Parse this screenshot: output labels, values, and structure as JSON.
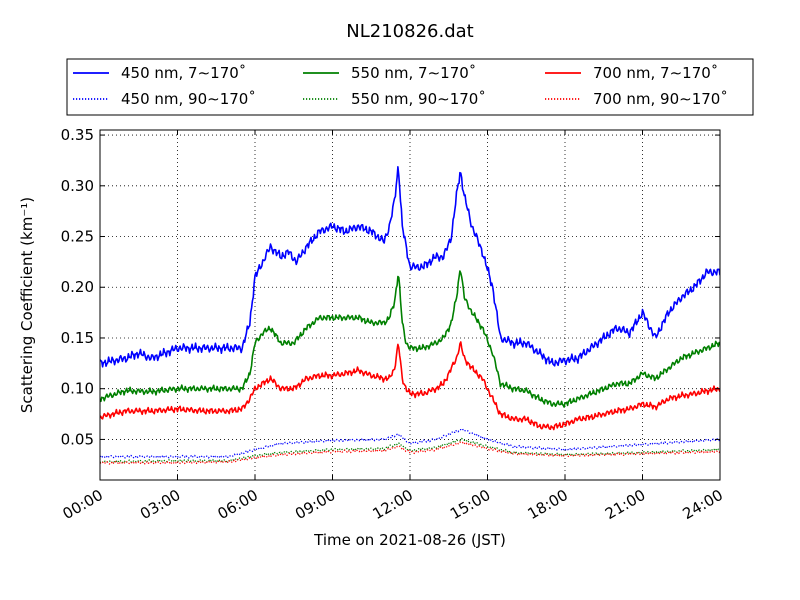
{
  "chart_data": {
    "type": "line",
    "title": "NL210826.dat",
    "xlabel": "Time on 2021-08-26 (JST)",
    "ylabel": "Scattering Coefficient (km⁻¹)",
    "xlim": [
      0,
      24
    ],
    "ylim": [
      0.01,
      0.355
    ],
    "x_ticks": [
      0,
      3,
      6,
      9,
      12,
      15,
      18,
      21,
      24
    ],
    "x_tick_labels": [
      "00:00",
      "03:00",
      "06:00",
      "09:00",
      "12:00",
      "15:00",
      "18:00",
      "21:00",
      "24:00"
    ],
    "y_ticks": [
      0.05,
      0.1,
      0.15,
      0.2,
      0.25,
      0.3,
      0.35
    ],
    "y_tick_labels": [
      "0.05",
      "0.10",
      "0.15",
      "0.20",
      "0.25",
      "0.30",
      "0.35"
    ],
    "grid": true,
    "legend_position": "top",
    "series": [
      {
        "name": "450 nm, 7∼170˚",
        "color": "#0000ff",
        "style": "solid",
        "x": [
          0,
          1,
          1.5,
          2,
          3,
          4,
          5,
          5.5,
          5.8,
          6.0,
          6.3,
          6.6,
          7,
          7.3,
          7.6,
          8,
          8.5,
          9,
          9.5,
          10,
          10.5,
          11,
          11.2,
          11.4,
          11.55,
          11.7,
          11.85,
          12,
          12.5,
          13,
          13.3,
          13.6,
          13.8,
          13.95,
          14.1,
          14.4,
          14.8,
          15.2,
          15.5,
          16,
          16.5,
          17,
          17.5,
          18,
          18.5,
          19,
          19.5,
          20,
          20.5,
          21,
          21.5,
          22,
          22.5,
          23,
          23.5,
          24
        ],
        "y": [
          0.125,
          0.13,
          0.135,
          0.13,
          0.14,
          0.14,
          0.14,
          0.14,
          0.165,
          0.21,
          0.225,
          0.24,
          0.23,
          0.235,
          0.225,
          0.24,
          0.255,
          0.26,
          0.255,
          0.26,
          0.255,
          0.245,
          0.26,
          0.285,
          0.32,
          0.26,
          0.24,
          0.22,
          0.22,
          0.23,
          0.23,
          0.25,
          0.29,
          0.315,
          0.29,
          0.26,
          0.235,
          0.2,
          0.15,
          0.145,
          0.145,
          0.135,
          0.125,
          0.128,
          0.13,
          0.14,
          0.15,
          0.16,
          0.155,
          0.175,
          0.15,
          0.175,
          0.19,
          0.2,
          0.215,
          0.215
        ]
      },
      {
        "name": "450 nm, 90∼170˚",
        "color": "#0000ff",
        "style": "dotted",
        "x": [
          0,
          3,
          5,
          6,
          7,
          9,
          11,
          11.55,
          12,
          13,
          14,
          15,
          16,
          18,
          21,
          24
        ],
        "y": [
          0.033,
          0.033,
          0.033,
          0.04,
          0.046,
          0.049,
          0.05,
          0.055,
          0.046,
          0.05,
          0.06,
          0.05,
          0.043,
          0.04,
          0.045,
          0.05
        ]
      },
      {
        "name": "550 nm, 7∼170˚",
        "color": "#008000",
        "style": "solid",
        "x": [
          0,
          1,
          2,
          3,
          4,
          5,
          5.5,
          5.8,
          6.0,
          6.3,
          6.6,
          7,
          7.5,
          8,
          8.5,
          9,
          9.5,
          10,
          10.5,
          11,
          11.2,
          11.4,
          11.55,
          11.7,
          11.85,
          12,
          12.5,
          13,
          13.3,
          13.6,
          13.8,
          13.95,
          14.1,
          14.4,
          14.8,
          15.2,
          15.5,
          16,
          16.5,
          17,
          17.5,
          18,
          18.5,
          19,
          19.5,
          20,
          20.5,
          21,
          21.5,
          22,
          22.5,
          23,
          23.5,
          24
        ],
        "y": [
          0.09,
          0.098,
          0.097,
          0.1,
          0.1,
          0.1,
          0.1,
          0.115,
          0.145,
          0.155,
          0.16,
          0.145,
          0.145,
          0.16,
          0.17,
          0.17,
          0.17,
          0.17,
          0.165,
          0.165,
          0.17,
          0.185,
          0.215,
          0.165,
          0.145,
          0.14,
          0.14,
          0.145,
          0.15,
          0.165,
          0.19,
          0.22,
          0.19,
          0.175,
          0.16,
          0.135,
          0.105,
          0.1,
          0.098,
          0.09,
          0.085,
          0.085,
          0.09,
          0.095,
          0.1,
          0.105,
          0.105,
          0.115,
          0.11,
          0.12,
          0.13,
          0.135,
          0.14,
          0.145
        ]
      },
      {
        "name": "550 nm, 90∼170˚",
        "color": "#008000",
        "style": "dotted",
        "x": [
          0,
          3,
          5,
          6,
          7,
          9,
          11,
          11.55,
          12,
          13,
          14,
          15,
          16,
          18,
          21,
          24
        ],
        "y": [
          0.028,
          0.029,
          0.029,
          0.034,
          0.037,
          0.04,
          0.041,
          0.046,
          0.039,
          0.042,
          0.05,
          0.043,
          0.037,
          0.035,
          0.037,
          0.04
        ]
      },
      {
        "name": "700 nm, 7∼170˚",
        "color": "#ff0000",
        "style": "solid",
        "x": [
          0,
          1,
          2,
          3,
          4,
          5,
          5.5,
          5.8,
          6.0,
          6.3,
          6.6,
          7,
          7.5,
          8,
          8.5,
          9,
          9.5,
          10,
          10.5,
          11,
          11.2,
          11.4,
          11.55,
          11.7,
          11.85,
          12,
          12.5,
          13,
          13.3,
          13.6,
          13.8,
          13.95,
          14.1,
          14.4,
          14.8,
          15.2,
          15.5,
          16,
          16.5,
          17,
          17.5,
          18,
          18.5,
          19,
          19.5,
          20,
          20.5,
          21,
          21.5,
          22,
          22.5,
          23,
          23.5,
          24
        ],
        "y": [
          0.072,
          0.078,
          0.078,
          0.08,
          0.078,
          0.078,
          0.08,
          0.09,
          0.1,
          0.105,
          0.11,
          0.1,
          0.1,
          0.11,
          0.113,
          0.113,
          0.115,
          0.118,
          0.113,
          0.11,
          0.11,
          0.12,
          0.145,
          0.11,
          0.1,
          0.095,
          0.095,
          0.1,
          0.105,
          0.12,
          0.13,
          0.145,
          0.13,
          0.12,
          0.11,
          0.09,
          0.075,
          0.07,
          0.07,
          0.063,
          0.062,
          0.065,
          0.07,
          0.072,
          0.075,
          0.078,
          0.08,
          0.085,
          0.082,
          0.09,
          0.093,
          0.095,
          0.098,
          0.1
        ]
      },
      {
        "name": "700 nm, 90∼170˚",
        "color": "#ff0000",
        "style": "dotted",
        "x": [
          0,
          3,
          5,
          6,
          7,
          9,
          11,
          11.55,
          12,
          13,
          14,
          15,
          16,
          18,
          21,
          24
        ],
        "y": [
          0.027,
          0.027,
          0.028,
          0.032,
          0.035,
          0.038,
          0.039,
          0.043,
          0.037,
          0.04,
          0.047,
          0.041,
          0.036,
          0.034,
          0.036,
          0.038
        ]
      }
    ]
  }
}
